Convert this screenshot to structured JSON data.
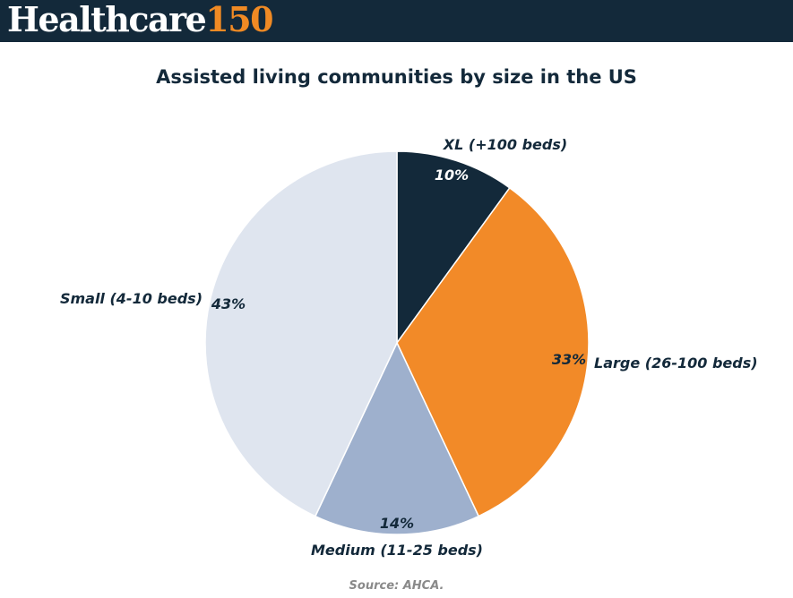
{
  "logo": {
    "word": "Healthcare",
    "number": "150"
  },
  "colors": {
    "header_bg": "#13293a",
    "accent": "#f08a24"
  },
  "chart_data": {
    "type": "pie",
    "title": "Assisted living communities by size in the US",
    "slices": [
      {
        "label": "XL (+100 beds)",
        "value": 10,
        "display": "10%",
        "color": "#13293a",
        "pct_color": "#ffffff"
      },
      {
        "label": "Large (26-100 beds)",
        "value": 33,
        "display": "33%",
        "color": "#f28a28",
        "pct_color": "#13293a"
      },
      {
        "label": "Medium (11-25 beds)",
        "value": 14,
        "display": "14%",
        "color": "#9eb0cd",
        "pct_color": "#13293a"
      },
      {
        "label": "Small  (4-10 beds)",
        "value": 43,
        "display": "43%",
        "color": "#dfe5ef",
        "pct_color": "#13293a"
      }
    ],
    "start": "top, clockwise",
    "source": "Source: AHCA."
  }
}
